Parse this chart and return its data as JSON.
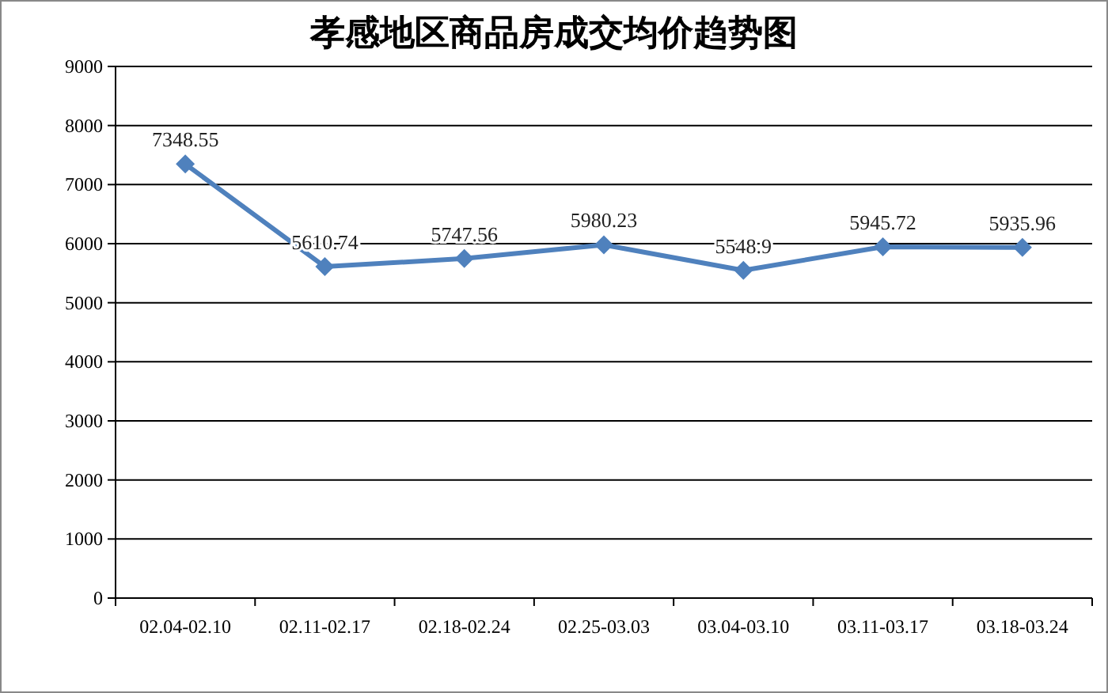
{
  "chart_data": {
    "type": "line",
    "title": "孝感地区商品房成交均价趋势图",
    "categories": [
      "02.04-02.10",
      "02.11-02.17",
      "02.18-02.24",
      "02.25-03.03",
      "03.04-03.10",
      "03.11-03.17",
      "03.18-03.24"
    ],
    "series": [
      {
        "color": "#4f81bd",
        "values": [
          7348.55,
          5610.74,
          5747.56,
          5980.23,
          5548.9,
          5945.72,
          5935.96
        ]
      }
    ],
    "ylim": [
      0,
      9000
    ],
    "yticks": [
      0,
      1000,
      2000,
      3000,
      4000,
      5000,
      6000,
      7000,
      8000,
      9000
    ],
    "grid": "y",
    "marker": "diamond",
    "line_style": "solid",
    "data_labels": true
  }
}
